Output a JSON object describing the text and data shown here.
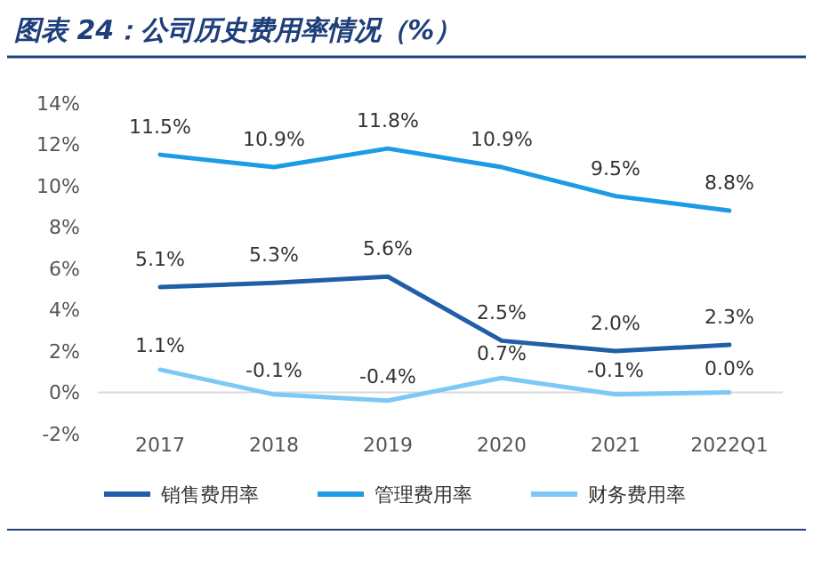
{
  "chart_data": {
    "type": "line",
    "title": "图表 24：公司历史费用率情况（%）",
    "categories": [
      "2017",
      "2018",
      "2019",
      "2020",
      "2021",
      "2022Q1"
    ],
    "series": [
      {
        "name": "销售费用率",
        "color": "#1f5fa8",
        "values": [
          5.1,
          5.3,
          5.6,
          2.5,
          2.0,
          2.3
        ],
        "value_labels": [
          "5.1%",
          "5.3%",
          "5.6%",
          "2.5%",
          "2.0%",
          "2.3%"
        ]
      },
      {
        "name": "管理费用率",
        "color": "#1c9be6",
        "values": [
          11.5,
          10.9,
          11.8,
          10.9,
          9.5,
          8.8
        ],
        "value_labels": [
          "11.5%",
          "10.9%",
          "11.8%",
          "10.9%",
          "9.5%",
          "8.8%"
        ]
      },
      {
        "name": "财务费用率",
        "color": "#7dc8f4",
        "values": [
          1.1,
          -0.1,
          -0.4,
          0.7,
          -0.1,
          0.0
        ],
        "value_labels": [
          "1.1%",
          "-0.1%",
          "-0.4%",
          "0.7%",
          "-0.1%",
          "0.0%"
        ]
      }
    ],
    "ylim": [
      -2,
      14
    ],
    "yticks": [
      {
        "value": -2,
        "label": "-2%"
      },
      {
        "value": 0,
        "label": "0%"
      },
      {
        "value": 2,
        "label": "2%"
      },
      {
        "value": 4,
        "label": "4%"
      },
      {
        "value": 6,
        "label": "6%"
      },
      {
        "value": 8,
        "label": "8%"
      },
      {
        "value": 10,
        "label": "10%"
      },
      {
        "value": 12,
        "label": "12%"
      },
      {
        "value": 14,
        "label": "14%"
      }
    ],
    "grid": false,
    "legend": "bottom",
    "marker": "none",
    "line_style": "solid"
  }
}
